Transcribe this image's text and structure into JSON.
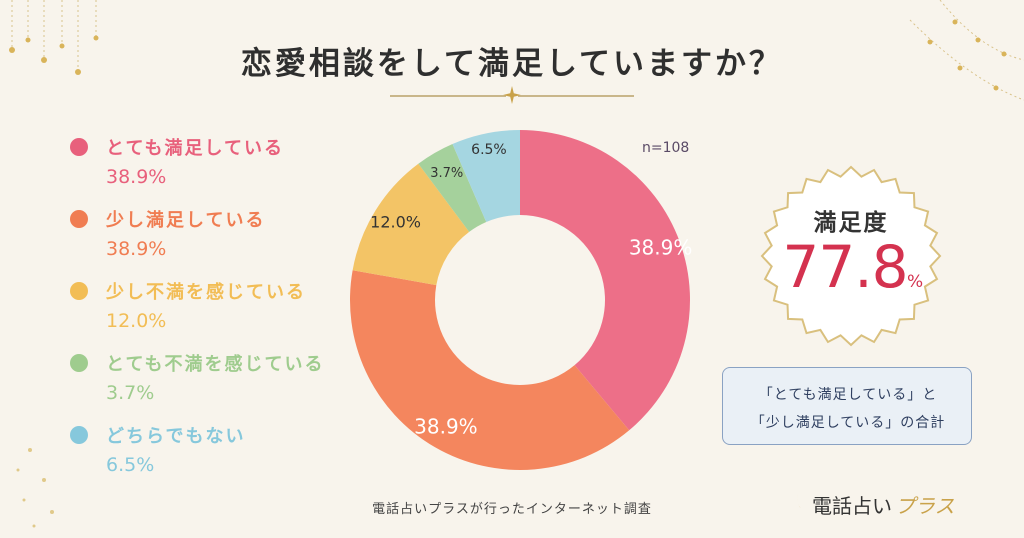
{
  "title": "恋愛相談をして満足していますか？",
  "sample_size": "n=108",
  "chart_data": {
    "type": "pie",
    "categories": [
      "とても満足している",
      "少し満足している",
      "少し不満を感じている",
      "とても不満を感じている",
      "どちらでもない"
    ],
    "values": [
      38.9,
      38.9,
      12.0,
      3.7,
      6.5
    ],
    "value_labels": [
      "38.9%",
      "38.9%",
      "12.0%",
      "3.7%",
      "6.5%"
    ],
    "colors": [
      "#ed6f88",
      "#f4865e",
      "#f3c466",
      "#a5d19c",
      "#a5d6e1"
    ],
    "legend_position": "left"
  },
  "legend": [
    {
      "label": "とても満足している",
      "pct": "38.9%",
      "color": "#e8607c"
    },
    {
      "label": "少し満足している",
      "pct": "38.9%",
      "color": "#f07d52"
    },
    {
      "label": "少し不満を感じている",
      "pct": "12.0%",
      "color": "#f2bd55"
    },
    {
      "label": "とても不満を感じている",
      "pct": "3.7%",
      "color": "#9fcc8e"
    },
    {
      "label": "どちらでもない",
      "pct": "6.5%",
      "color": "#86c8dc"
    }
  ],
  "satisfaction": {
    "title": "満足度",
    "value": "77.8",
    "unit": "%",
    "note_line1": "「とても満足している」と",
    "note_line2": "「少し満足している」の合計"
  },
  "footer": "電話占いプラスが行ったインターネット調査",
  "brand": {
    "main": "電話占い",
    "accent": "プラス"
  }
}
